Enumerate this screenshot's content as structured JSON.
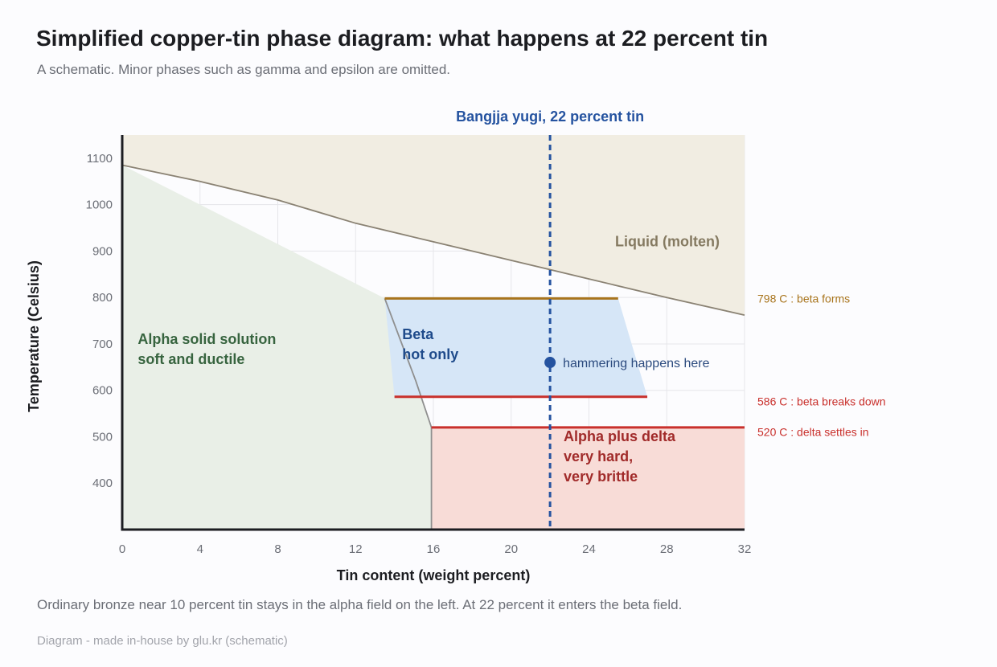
{
  "header": {
    "title": "Simplified copper-tin phase diagram: what happens at 22 percent tin",
    "subtitle": "A schematic. Minor phases such as gamma and epsilon are omitted."
  },
  "footer": {
    "note": "Ordinary bronze near 10 percent tin stays in the alpha field on the left. At 22 percent it enters the beta field.",
    "source": "Diagram - made in-house by glu.kr (schematic)"
  },
  "chart_data": {
    "type": "area",
    "xlabel": "Tin content (weight percent)",
    "ylabel": "Temperature (Celsius)",
    "xlim": [
      0,
      32
    ],
    "ylim": [
      300,
      1150
    ],
    "x_ticks": [
      "0",
      "4",
      "8",
      "12",
      "16",
      "20",
      "24",
      "28",
      "32"
    ],
    "y_ticks": [
      "400",
      "500",
      "600",
      "700",
      "800",
      "900",
      "1000",
      "1100"
    ],
    "grid": true,
    "regions": [
      {
        "label": "Liquid (molten)",
        "color": "#f1ede2",
        "text_color": "#857a61",
        "label_at": [
          27,
          910
        ],
        "polygon": [
          [
            0,
            1150
          ],
          [
            32,
            1150
          ],
          [
            32,
            762
          ],
          [
            28,
            800
          ],
          [
            24,
            840
          ],
          [
            22,
            860
          ],
          [
            20,
            880
          ],
          [
            16,
            920
          ],
          [
            12,
            960
          ],
          [
            8,
            1010
          ],
          [
            4,
            1050
          ],
          [
            0,
            1085
          ]
        ]
      },
      {
        "label": "Alpha solid solution\nsoft and ductile",
        "color": "#e9efe7",
        "text_color": "#37643f",
        "label_at": [
          0.8,
          700
        ],
        "polygon": [
          [
            0,
            1085
          ],
          [
            13.5,
            798
          ],
          [
            15.1,
            620
          ],
          [
            15.9,
            520
          ],
          [
            15.9,
            300
          ],
          [
            0,
            300
          ]
        ]
      },
      {
        "label": "Beta\nhot only",
        "color": "#d6e6f7",
        "text_color": "#1f4b8b",
        "label_at": [
          14.4,
          710
        ],
        "polygon": [
          [
            13.5,
            798
          ],
          [
            25.5,
            798
          ],
          [
            27,
            586
          ],
          [
            14,
            586
          ]
        ]
      },
      {
        "label": "Alpha plus delta\nvery hard,\nvery brittle",
        "color": "#f8dcd7",
        "text_color": "#a12b2a",
        "label_at": [
          22.7,
          490
        ],
        "polygon": [
          [
            15.9,
            520
          ],
          [
            32,
            520
          ],
          [
            32,
            300
          ],
          [
            15.9,
            300
          ]
        ]
      }
    ],
    "lines": [
      {
        "name": "liquidus",
        "color": "#8a8273",
        "points": [
          [
            0,
            1085
          ],
          [
            4,
            1050
          ],
          [
            8,
            1010
          ],
          [
            12,
            960
          ],
          [
            16,
            920
          ],
          [
            20,
            880
          ],
          [
            22,
            860
          ],
          [
            24,
            840
          ],
          [
            28,
            800
          ],
          [
            32,
            762
          ]
        ]
      },
      {
        "name": "alpha boundary",
        "color": "#8f8f8f",
        "points": [
          [
            13.5,
            798
          ],
          [
            15.1,
            620
          ],
          [
            15.9,
            520
          ],
          [
            15.9,
            300
          ]
        ]
      }
    ],
    "isotherms": [
      {
        "temp": 798,
        "x_from": 13.5,
        "x_to": 25.5,
        "color": "#a8741c",
        "label": "798 C : beta forms",
        "label_y": 798
      },
      {
        "temp": 586,
        "x_from": 14,
        "x_to": 27,
        "color": "#c9302c",
        "label": "586 C : beta breaks down",
        "label_y": 576
      },
      {
        "temp": 520,
        "x_from": 15.9,
        "x_to": 32,
        "color": "#c9302c",
        "label": "520 C : delta settles in",
        "label_y": 510
      }
    ],
    "marker_line": {
      "x": 22,
      "color": "#2553a0",
      "label": "Bangjja yugi, 22 percent tin"
    },
    "point": {
      "x": 22,
      "y": 660,
      "color": "#2553a0",
      "label": "hammering happens here"
    }
  }
}
